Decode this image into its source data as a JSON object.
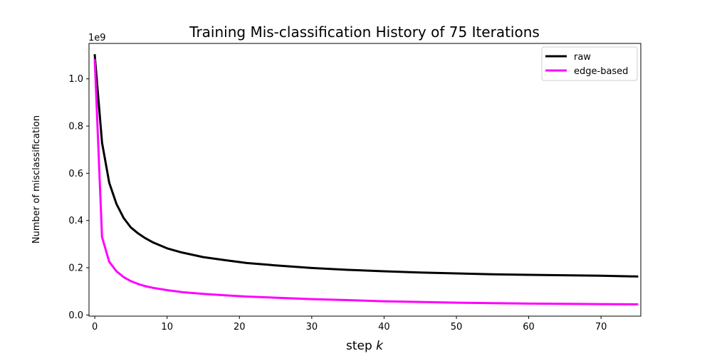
{
  "chart_data": {
    "type": "line",
    "title": "Training Mis-classification History of 75 Iterations",
    "xlabel_text": "step ",
    "xlabel_var": "k",
    "ylabel": "Number of misclassification",
    "y_scale_label": "1e9",
    "y_scale": 1000000000,
    "xlim": [
      -0.8,
      75.5
    ],
    "ylim": [
      -0.005,
      1.15
    ],
    "x_ticks": [
      0,
      10,
      20,
      30,
      40,
      50,
      60,
      70
    ],
    "y_ticks": [
      0.0,
      0.2,
      0.4,
      0.6,
      0.8,
      1.0
    ],
    "y_tick_labels": [
      "0.0",
      "0.2",
      "0.4",
      "0.6",
      "0.8",
      "1.0"
    ],
    "grid": false,
    "legend_position": "top-right",
    "series": [
      {
        "name": "raw",
        "color": "#000000",
        "x": [
          0,
          1,
          2,
          3,
          4,
          5,
          6,
          7,
          8,
          10,
          12,
          15,
          18,
          21,
          25,
          30,
          35,
          40,
          45,
          50,
          55,
          60,
          65,
          70,
          75
        ],
        "y": [
          1.1,
          0.73,
          0.56,
          0.47,
          0.41,
          0.37,
          0.345,
          0.325,
          0.308,
          0.282,
          0.265,
          0.245,
          0.232,
          0.22,
          0.21,
          0.199,
          0.191,
          0.185,
          0.18,
          0.176,
          0.172,
          0.17,
          0.168,
          0.166,
          0.163
        ]
      },
      {
        "name": "edge-based",
        "color": "#ff00ff",
        "x": [
          0,
          1,
          2,
          3,
          4,
          5,
          6,
          7,
          8,
          10,
          12,
          15,
          18,
          21,
          25,
          30,
          35,
          40,
          45,
          50,
          55,
          60,
          65,
          70,
          75
        ],
        "y": [
          1.08,
          0.33,
          0.225,
          0.185,
          0.16,
          0.143,
          0.131,
          0.122,
          0.115,
          0.105,
          0.097,
          0.089,
          0.083,
          0.078,
          0.073,
          0.067,
          0.063,
          0.058,
          0.055,
          0.052,
          0.05,
          0.048,
          0.047,
          0.046,
          0.045
        ]
      }
    ]
  }
}
